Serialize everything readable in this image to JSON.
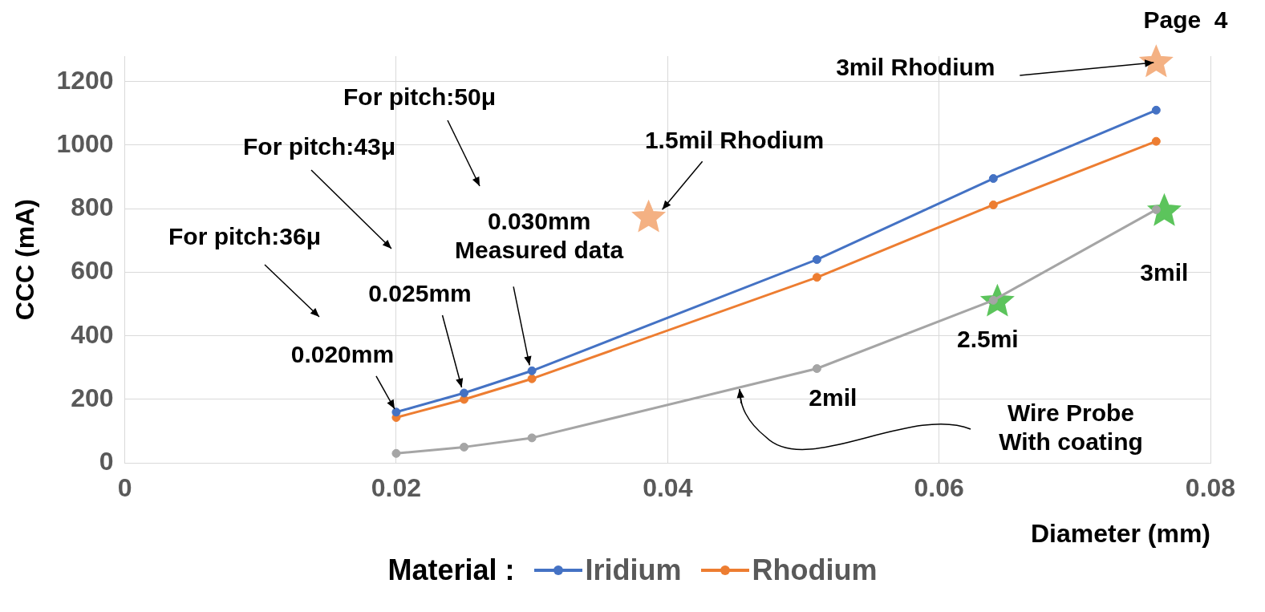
{
  "chart_data": {
    "type": "line",
    "xlabel": "Diameter (mm)",
    "ylabel": "CCC (mA)",
    "legend_title": "Material :",
    "xlim": [
      0,
      0.08
    ],
    "xticks": [
      0,
      0.02,
      0.04,
      0.06,
      0.08
    ],
    "ylim": [
      0,
      1280
    ],
    "yticks": [
      0,
      200,
      400,
      600,
      800,
      1000,
      1200
    ],
    "grid": true,
    "legend": "bottom",
    "marker": "circle",
    "line_style": "solid",
    "series": [
      {
        "name": "Iridium",
        "color": "#4472c4",
        "x": [
          0.02,
          0.025,
          0.03,
          0.051,
          0.064,
          0.076
        ],
        "values": [
          160,
          220,
          290,
          640,
          895,
          1110
        ]
      },
      {
        "name": "Rhodium",
        "color": "#ed7d31",
        "x": [
          0.02,
          0.025,
          0.03,
          0.051,
          0.064,
          0.076
        ],
        "values": [
          143,
          200,
          265,
          584,
          812,
          1012
        ]
      },
      {
        "color": "#a5a5a5",
        "x": [
          0.02,
          0.025,
          0.03,
          0.051,
          0.064,
          0.076
        ],
        "values": [
          30,
          50,
          79,
          297,
          512,
          797
        ]
      },
      {
        "type": "scatter",
        "marker": "star",
        "color": "#f4b183",
        "x": [
          0.0386,
          0.076
        ],
        "values": [
          772,
          1260
        ]
      },
      {
        "type": "scatter",
        "marker": "star",
        "color": "#5cc45c",
        "x": [
          0.0643,
          0.0766
        ],
        "values": [
          507,
          792
        ]
      }
    ],
    "annotations": [
      {
        "text": "0.020mm",
        "x": 0.02,
        "y": 160
      },
      {
        "text": "0.025mm",
        "x": 0.025,
        "y": 220
      },
      {
        "text": "0.030mm\nMeasured data",
        "x": 0.03,
        "y": 290
      },
      {
        "text": "1.5mil Rhodium",
        "x": 0.0386,
        "y": 772
      },
      {
        "text": "3mil Rhodium",
        "x": 0.076,
        "y": 1260
      },
      {
        "text": "2mil",
        "x": 0.051,
        "y": 297
      },
      {
        "text": "2.5mi",
        "x": 0.064,
        "y": 512
      },
      {
        "text": "3mil",
        "x": 0.076,
        "y": 797
      },
      "Wire Probe\nWith coating",
      "For pitch:50μ",
      "For pitch:43μ",
      "For pitch:36μ",
      "Page  4"
    ]
  }
}
